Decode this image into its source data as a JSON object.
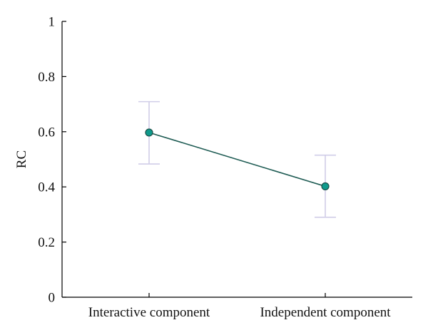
{
  "chart_data": {
    "type": "line",
    "title": "",
    "xlabel": "",
    "ylabel": "RC",
    "categories": [
      "Interactive component",
      "Independent component"
    ],
    "series": [
      {
        "values": [
          0.597,
          0.402
        ],
        "error_low": [
          0.483,
          0.29
        ],
        "error_high": [
          0.709,
          0.515
        ]
      }
    ],
    "ylim": [
      0,
      1
    ],
    "yticks": [
      0,
      0.2,
      0.4,
      0.6,
      0.8,
      1
    ],
    "ytick_labels": [
      "0",
      "0.2",
      "0.4",
      "0.6",
      "0.8",
      "1"
    ],
    "grid": false,
    "legend": "none",
    "colors": {
      "line": "#1f5c54",
      "marker_fill": "#0f9a8c",
      "marker_edge": "#1b4d46",
      "error_bar": "#d0cde8",
      "axis": "#000000"
    }
  }
}
